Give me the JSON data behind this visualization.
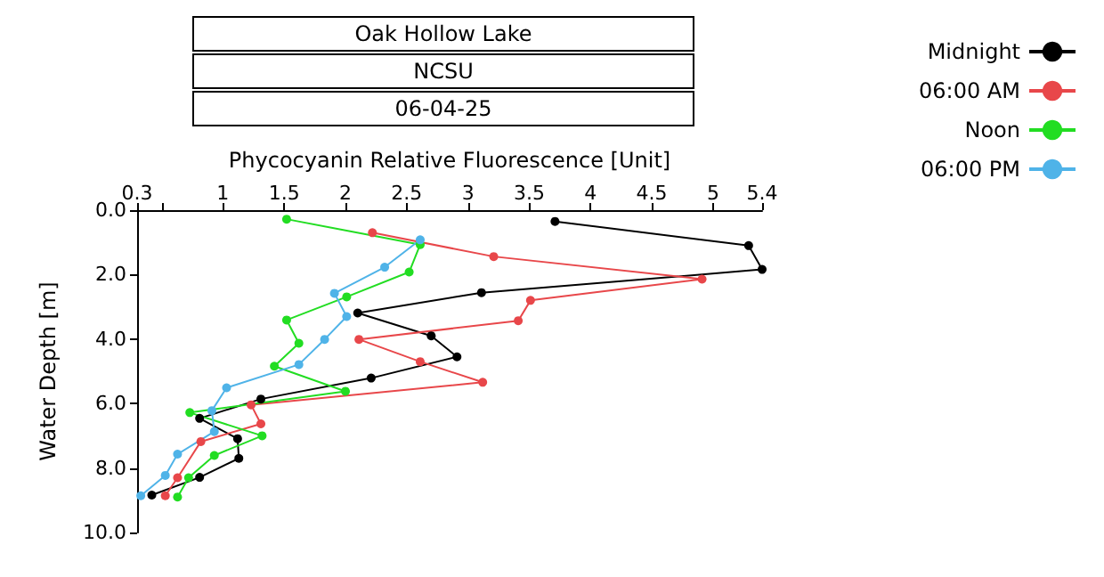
{
  "chart_data": {
    "type": "line",
    "title": "Oak Hollow Lake",
    "subtitle": "NCSU",
    "annotations": [
      "06-04-25"
    ],
    "xlabel": "Phycocyanin Relative Fluorescence [Unit]",
    "ylabel": "Water Depth [m]",
    "xlim": [
      0.3,
      5.4
    ],
    "xticks": [
      0.3,
      {
        "value": 0.5,
        "label": null
      },
      1,
      1.5,
      2,
      2.5,
      3,
      3.5,
      4,
      4.5,
      5,
      5.4
    ],
    "ylim": [
      10,
      0
    ],
    "yticks": [
      {
        "value": 0,
        "label": "0.0"
      },
      {
        "value": 2,
        "label": "2.0"
      },
      {
        "value": 4,
        "label": "4.0"
      },
      {
        "value": 6,
        "label": "6.0"
      },
      {
        "value": 8,
        "label": "8.0"
      },
      {
        "value": 10,
        "label": "10.0"
      }
    ],
    "grid": false,
    "legend": "top right",
    "marker": "circle",
    "line_style": "solid",
    "series": [
      {
        "name": "Midnight",
        "color": "#000000",
        "x": [
          3.71,
          5.29,
          5.4,
          3.11,
          2.1,
          2.7,
          2.91,
          2.21,
          1.31,
          0.81,
          1.12,
          1.13,
          0.81,
          0.42
        ],
        "values": [
          0.35,
          1.1,
          1.84,
          2.56,
          3.19,
          3.9,
          4.55,
          5.21,
          5.86,
          6.46,
          7.09,
          7.7,
          8.29,
          8.84
        ]
      },
      {
        "name": "06:00 AM",
        "color": "#e8474a",
        "x": [
          2.22,
          3.21,
          4.91,
          3.51,
          3.41,
          2.11,
          2.61,
          3.12,
          1.23,
          1.31,
          0.82,
          0.63,
          0.53
        ],
        "values": [
          0.7,
          1.44,
          2.14,
          2.8,
          3.43,
          4.01,
          4.7,
          5.34,
          6.04,
          6.63,
          7.18,
          8.3,
          8.86
        ]
      },
      {
        "name": "Noon",
        "color": "#22dd22",
        "x": [
          1.52,
          2.61,
          2.52,
          2.01,
          1.52,
          1.62,
          1.42,
          2.0,
          0.73,
          1.32,
          0.93,
          0.72,
          0.63
        ],
        "values": [
          0.28,
          1.07,
          1.92,
          2.69,
          3.41,
          4.13,
          4.84,
          5.62,
          6.28,
          7.0,
          7.61,
          8.3,
          8.9
        ]
      },
      {
        "name": "06:00 PM",
        "color": "#4fb3e8",
        "x": [
          2.61,
          2.32,
          1.91,
          2.01,
          1.83,
          1.62,
          1.03,
          0.91,
          0.93,
          0.63,
          0.53,
          0.33
        ],
        "values": [
          0.92,
          1.77,
          2.58,
          3.3,
          4.01,
          4.79,
          5.51,
          6.22,
          6.87,
          7.57,
          8.23,
          8.86
        ]
      }
    ]
  }
}
